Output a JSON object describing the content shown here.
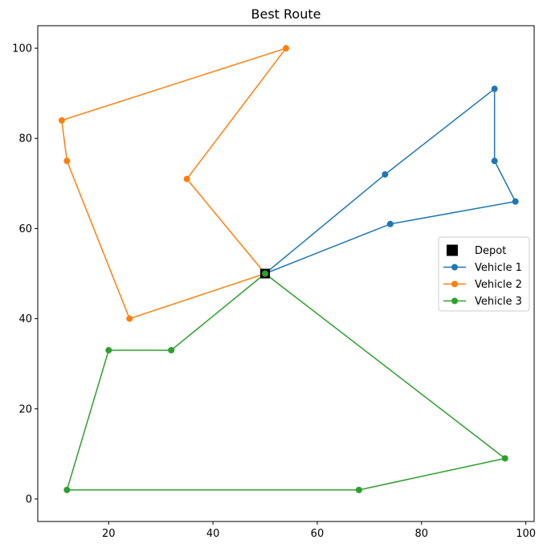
{
  "chart_data": {
    "type": "line",
    "title": "Best Route",
    "xlabel": "",
    "ylabel": "",
    "xlim": [
      6.4,
      101.6
    ],
    "ylim": [
      -5.0,
      105.0
    ],
    "xticks": [
      20,
      40,
      60,
      80,
      100
    ],
    "yticks": [
      0,
      20,
      40,
      60,
      80,
      100
    ],
    "grid": false,
    "legend_position": "right-middle",
    "depot": {
      "name": "Depot",
      "x": 50,
      "y": 50,
      "color": "#000000"
    },
    "series": [
      {
        "name": "Vehicle 1",
        "color": "#1f77b4",
        "points": [
          {
            "x": 50,
            "y": 50
          },
          {
            "x": 73,
            "y": 72
          },
          {
            "x": 94,
            "y": 91
          },
          {
            "x": 94,
            "y": 75
          },
          {
            "x": 98,
            "y": 66
          },
          {
            "x": 74,
            "y": 61
          },
          {
            "x": 50,
            "y": 50
          }
        ]
      },
      {
        "name": "Vehicle 2",
        "color": "#ff7f0e",
        "points": [
          {
            "x": 50,
            "y": 50
          },
          {
            "x": 35,
            "y": 71
          },
          {
            "x": 54,
            "y": 100
          },
          {
            "x": 11,
            "y": 84
          },
          {
            "x": 12,
            "y": 75
          },
          {
            "x": 24,
            "y": 40
          },
          {
            "x": 50,
            "y": 50
          }
        ]
      },
      {
        "name": "Vehicle 3",
        "color": "#2ca02c",
        "points": [
          {
            "x": 50,
            "y": 50
          },
          {
            "x": 96,
            "y": 9
          },
          {
            "x": 68,
            "y": 2
          },
          {
            "x": 12,
            "y": 2
          },
          {
            "x": 20,
            "y": 33
          },
          {
            "x": 32,
            "y": 33
          },
          {
            "x": 50,
            "y": 50
          }
        ]
      }
    ]
  }
}
